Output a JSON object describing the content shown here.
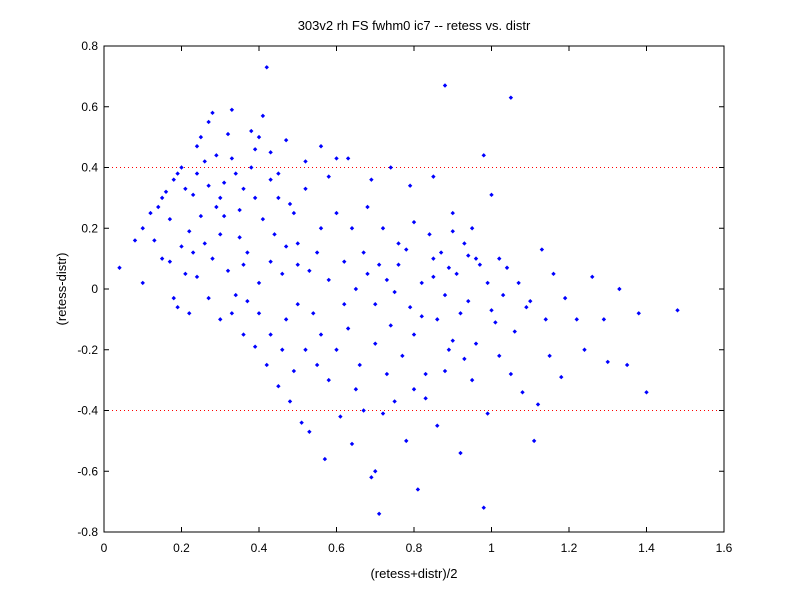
{
  "chart_data": {
    "type": "scatter",
    "title": "303v2 rh FS fwhm0 ic7 -- retess vs. distr",
    "xlabel": "(retess+distr)/2",
    "ylabel": "(retess-distr)",
    "xlim": [
      0,
      1.6
    ],
    "ylim": [
      -0.8,
      0.8
    ],
    "xticks": [
      "0",
      "0.2",
      "0.4",
      "0.6",
      "0.8",
      "1",
      "1.2",
      "1.4",
      "1.6"
    ],
    "yticks": [
      "0.8",
      "0.6",
      "0.4",
      "0.2",
      "0",
      "-0.2",
      "-0.4",
      "-0.6",
      "-0.8"
    ],
    "grid": false,
    "reference_lines": [
      {
        "y": 0.4,
        "style": "dotted",
        "color": "#ff0000"
      },
      {
        "y": -0.4,
        "style": "dotted",
        "color": "#ff0000"
      }
    ],
    "marker_color": "#0000ff",
    "points": [
      [
        0.04,
        0.07
      ],
      [
        0.08,
        0.16
      ],
      [
        0.1,
        0.2
      ],
      [
        0.1,
        0.02
      ],
      [
        0.12,
        0.25
      ],
      [
        0.13,
        0.16
      ],
      [
        0.14,
        0.27
      ],
      [
        0.15,
        0.3
      ],
      [
        0.16,
        0.32
      ],
      [
        0.17,
        0.23
      ],
      [
        0.17,
        0.09
      ],
      [
        0.18,
        0.36
      ],
      [
        0.19,
        0.38
      ],
      [
        0.2,
        0.4
      ],
      [
        0.19,
        -0.06
      ],
      [
        0.21,
        0.33
      ],
      [
        0.22,
        0.19
      ],
      [
        0.23,
        0.12
      ],
      [
        0.24,
        0.47
      ],
      [
        0.25,
        0.5
      ],
      [
        0.26,
        0.42
      ],
      [
        0.27,
        0.55
      ],
      [
        0.28,
        0.58
      ],
      [
        0.29,
        0.44
      ],
      [
        0.3,
        0.3
      ],
      [
        0.31,
        0.24
      ],
      [
        0.32,
        0.51
      ],
      [
        0.33,
        0.59
      ],
      [
        0.34,
        0.38
      ],
      [
        0.35,
        0.17
      ],
      [
        0.36,
        0.08
      ],
      [
        0.38,
        0.52
      ],
      [
        0.39,
        0.46
      ],
      [
        0.4,
        0.5
      ],
      [
        0.41,
        0.57
      ],
      [
        0.42,
        0.73
      ],
      [
        0.43,
        0.36
      ],
      [
        0.45,
        0.3
      ],
      [
        0.47,
        0.49
      ],
      [
        0.49,
        0.25
      ],
      [
        0.52,
        0.42
      ],
      [
        0.56,
        0.47
      ],
      [
        0.58,
        0.37
      ],
      [
        0.6,
        0.43
      ],
      [
        0.63,
        0.43
      ],
      [
        0.69,
        0.36
      ],
      [
        0.74,
        0.4
      ],
      [
        0.79,
        0.34
      ],
      [
        0.85,
        0.37
      ],
      [
        0.88,
        0.67
      ],
      [
        0.98,
        0.44
      ],
      [
        1.0,
        0.31
      ],
      [
        1.05,
        0.63
      ],
      [
        0.9,
        0.25
      ],
      [
        0.95,
        0.2
      ],
      [
        1.02,
        0.1
      ],
      [
        1.04,
        0.07
      ],
      [
        1.07,
        0.02
      ],
      [
        1.1,
        -0.04
      ],
      [
        1.13,
        0.13
      ],
      [
        1.14,
        -0.1
      ],
      [
        1.16,
        0.05
      ],
      [
        1.19,
        -0.03
      ],
      [
        1.22,
        -0.1
      ],
      [
        1.24,
        -0.2
      ],
      [
        1.26,
        0.04
      ],
      [
        1.29,
        -0.1
      ],
      [
        1.33,
        0.0
      ],
      [
        1.38,
        -0.08
      ],
      [
        1.4,
        -0.34
      ],
      [
        1.48,
        -0.07
      ],
      [
        1.35,
        -0.25
      ],
      [
        1.3,
        -0.24
      ],
      [
        1.18,
        -0.29
      ],
      [
        1.15,
        -0.22
      ],
      [
        1.12,
        -0.38
      ],
      [
        1.11,
        -0.5
      ],
      [
        1.08,
        -0.34
      ],
      [
        1.05,
        -0.28
      ],
      [
        1.02,
        -0.22
      ],
      [
        0.99,
        -0.41
      ],
      [
        0.98,
        -0.72
      ],
      [
        0.95,
        -0.3
      ],
      [
        0.92,
        -0.54
      ],
      [
        0.89,
        -0.2
      ],
      [
        0.86,
        -0.45
      ],
      [
        0.83,
        -0.36
      ],
      [
        0.81,
        -0.66
      ],
      [
        0.78,
        -0.5
      ],
      [
        0.75,
        -0.37
      ],
      [
        0.72,
        -0.41
      ],
      [
        0.71,
        -0.74
      ],
      [
        0.7,
        -0.6
      ],
      [
        0.69,
        -0.62
      ],
      [
        0.67,
        -0.4
      ],
      [
        0.64,
        -0.51
      ],
      [
        0.61,
        -0.42
      ],
      [
        0.57,
        -0.56
      ],
      [
        0.53,
        -0.47
      ],
      [
        0.51,
        -0.44
      ],
      [
        0.48,
        -0.37
      ],
      [
        0.45,
        -0.32
      ],
      [
        0.42,
        -0.25
      ],
      [
        0.39,
        -0.19
      ],
      [
        0.36,
        -0.15
      ],
      [
        0.33,
        -0.08
      ],
      [
        0.3,
        -0.1
      ],
      [
        0.27,
        -0.03
      ],
      [
        0.24,
        0.04
      ],
      [
        0.22,
        -0.08
      ],
      [
        0.26,
        0.15
      ],
      [
        0.28,
        0.1
      ],
      [
        0.3,
        0.18
      ],
      [
        0.32,
        0.06
      ],
      [
        0.34,
        -0.02
      ],
      [
        0.37,
        0.12
      ],
      [
        0.4,
        0.02
      ],
      [
        0.43,
        0.09
      ],
      [
        0.46,
        0.05
      ],
      [
        0.5,
        0.15
      ],
      [
        0.53,
        0.06
      ],
      [
        0.55,
        0.12
      ],
      [
        0.58,
        0.03
      ],
      [
        0.62,
        0.09
      ],
      [
        0.65,
        0.0
      ],
      [
        0.68,
        0.05
      ],
      [
        0.7,
        -0.05
      ],
      [
        0.73,
        0.03
      ],
      [
        0.76,
        0.08
      ],
      [
        0.79,
        -0.06
      ],
      [
        0.82,
        0.02
      ],
      [
        0.85,
        0.1
      ],
      [
        0.88,
        -0.02
      ],
      [
        0.91,
        0.05
      ],
      [
        0.94,
        -0.04
      ],
      [
        0.97,
        0.08
      ],
      [
        1.0,
        -0.07
      ],
      [
        1.03,
        -0.02
      ],
      [
        0.6,
        0.25
      ],
      [
        0.64,
        0.2
      ],
      [
        0.68,
        0.27
      ],
      [
        0.72,
        0.2
      ],
      [
        0.76,
        0.15
      ],
      [
        0.8,
        0.22
      ],
      [
        0.84,
        0.18
      ],
      [
        0.87,
        0.12
      ],
      [
        0.9,
        0.19
      ],
      [
        0.93,
        0.15
      ],
      [
        0.96,
        0.1
      ],
      [
        0.56,
        -0.15
      ],
      [
        0.6,
        -0.2
      ],
      [
        0.63,
        -0.13
      ],
      [
        0.66,
        -0.25
      ],
      [
        0.7,
        -0.18
      ],
      [
        0.74,
        -0.12
      ],
      [
        0.77,
        -0.22
      ],
      [
        0.8,
        -0.15
      ],
      [
        0.83,
        -0.28
      ],
      [
        0.86,
        -0.1
      ],
      [
        0.9,
        -0.17
      ],
      [
        0.93,
        -0.23
      ],
      [
        0.47,
        -0.1
      ],
      [
        0.5,
        -0.05
      ],
      [
        0.54,
        -0.08
      ],
      [
        0.44,
        0.18
      ],
      [
        0.48,
        0.28
      ],
      [
        0.52,
        0.33
      ],
      [
        0.56,
        0.2
      ],
      [
        0.4,
        -0.08
      ],
      [
        0.37,
        -0.04
      ],
      [
        0.35,
        0.26
      ],
      [
        0.31,
        0.35
      ],
      [
        0.29,
        0.27
      ],
      [
        0.25,
        0.24
      ],
      [
        0.23,
        0.31
      ],
      [
        0.21,
        0.05
      ],
      [
        0.2,
        0.14
      ],
      [
        0.18,
        -0.03
      ],
      [
        0.15,
        0.1
      ],
      [
        0.41,
        0.23
      ],
      [
        0.45,
        0.38
      ],
      [
        0.5,
        0.08
      ],
      [
        0.58,
        -0.3
      ],
      [
        0.65,
        -0.33
      ],
      [
        0.73,
        -0.28
      ],
      [
        0.8,
        -0.33
      ],
      [
        0.88,
        -0.27
      ],
      [
        0.96,
        -0.18
      ],
      [
        1.06,
        -0.14
      ],
      [
        1.09,
        -0.06
      ],
      [
        0.62,
        -0.05
      ],
      [
        0.67,
        0.12
      ],
      [
        0.71,
        0.08
      ],
      [
        0.75,
        -0.01
      ],
      [
        0.78,
        0.13
      ],
      [
        0.82,
        -0.09
      ],
      [
        0.85,
        0.04
      ],
      [
        0.89,
        0.07
      ],
      [
        0.92,
        -0.08
      ],
      [
        0.94,
        0.11
      ],
      [
        0.99,
        0.02
      ],
      [
        1.01,
        -0.11
      ],
      [
        0.33,
        0.43
      ],
      [
        0.36,
        0.33
      ],
      [
        0.38,
        0.4
      ],
      [
        0.43,
        0.45
      ],
      [
        0.47,
        0.14
      ],
      [
        0.52,
        -0.2
      ],
      [
        0.55,
        -0.25
      ],
      [
        0.49,
        -0.27
      ],
      [
        0.46,
        -0.2
      ],
      [
        0.43,
        -0.15
      ],
      [
        0.39,
        0.3
      ],
      [
        0.27,
        0.34
      ],
      [
        0.24,
        0.38
      ]
    ]
  }
}
